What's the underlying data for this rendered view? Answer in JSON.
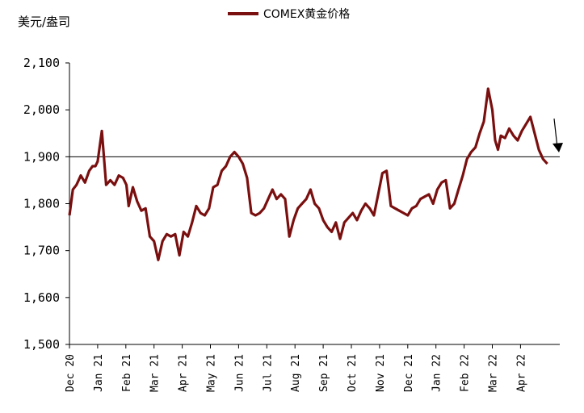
{
  "chart_data": {
    "type": "line",
    "ylabel": "美元/盎司",
    "ylim": [
      1500,
      2100
    ],
    "yticks": [
      1500,
      1600,
      1700,
      1800,
      1900,
      2000,
      2100
    ],
    "ytick_labels": [
      "1,500",
      "1,600",
      "1,700",
      "1,800",
      "1,900",
      "2,000",
      "2,100"
    ],
    "x_ticks": [
      "Dec 20",
      "Jan 21",
      "Feb 21",
      "Mar 21",
      "Apr 21",
      "May 21",
      "Jun 21",
      "Jul 21",
      "Aug 21",
      "Sep 21",
      "Oct 21",
      "Nov 21",
      "Dec 21",
      "Jan 22",
      "Feb 22",
      "Mar 22",
      "Apr 22"
    ],
    "reference_line": 1900,
    "series": [
      {
        "name": "COMEX黄金价格",
        "color": "#7a0f0f",
        "x": [
          0,
          0.12,
          0.25,
          0.4,
          0.55,
          0.7,
          0.82,
          0.92,
          1.0,
          1.15,
          1.3,
          1.45,
          1.6,
          1.75,
          1.9,
          2.02,
          2.1,
          2.25,
          2.4,
          2.55,
          2.7,
          2.85,
          3.0,
          3.15,
          3.3,
          3.45,
          3.6,
          3.75,
          3.9,
          4.05,
          4.2,
          4.35,
          4.5,
          4.65,
          4.8,
          4.95,
          5.1,
          5.25,
          5.4,
          5.55,
          5.7,
          5.85,
          6.0,
          6.15,
          6.3,
          6.45,
          6.6,
          6.75,
          6.9,
          7.05,
          7.2,
          7.35,
          7.5,
          7.65,
          7.8,
          7.95,
          8.1,
          8.25,
          8.4,
          8.55,
          8.7,
          8.85,
          9.0,
          9.15,
          9.3,
          9.45,
          9.6,
          9.75,
          9.9,
          10.05,
          10.2,
          10.35,
          10.5,
          10.65,
          10.8,
          10.95,
          11.1,
          11.25,
          11.4,
          11.55,
          11.7,
          11.85,
          12.0,
          12.15,
          12.3,
          12.45,
          12.6,
          12.75,
          12.9,
          13.05,
          13.2,
          13.35,
          13.5,
          13.65,
          13.8,
          13.95,
          14.1,
          14.25,
          14.4,
          14.55,
          14.7,
          14.85,
          15.0,
          15.1,
          15.2,
          15.3,
          15.45,
          15.6,
          15.75,
          15.9,
          16.05,
          16.2,
          16.35,
          16.5,
          16.65,
          16.8,
          16.95
        ],
        "values": [
          1775,
          1830,
          1840,
          1860,
          1845,
          1870,
          1880,
          1880,
          1890,
          1955,
          1840,
          1850,
          1840,
          1860,
          1855,
          1840,
          1795,
          1835,
          1805,
          1785,
          1790,
          1730,
          1720,
          1680,
          1720,
          1735,
          1730,
          1735,
          1690,
          1740,
          1730,
          1760,
          1795,
          1780,
          1775,
          1790,
          1835,
          1840,
          1870,
          1880,
          1900,
          1910,
          1900,
          1885,
          1855,
          1780,
          1775,
          1780,
          1790,
          1810,
          1830,
          1810,
          1820,
          1810,
          1730,
          1765,
          1790,
          1800,
          1810,
          1830,
          1800,
          1790,
          1765,
          1750,
          1740,
          1760,
          1725,
          1760,
          1770,
          1780,
          1765,
          1785,
          1800,
          1790,
          1775,
          1820,
          1865,
          1870,
          1795,
          1790,
          1785,
          1780,
          1775,
          1790,
          1795,
          1810,
          1815,
          1820,
          1800,
          1830,
          1845,
          1850,
          1790,
          1800,
          1830,
          1860,
          1895,
          1910,
          1920,
          1950,
          1975,
          2045,
          2000,
          1935,
          1915,
          1945,
          1940,
          1960,
          1945,
          1935,
          1955,
          1970,
          1985,
          1950,
          1915,
          1895,
          1885
        ]
      }
    ],
    "annotation": "downward-arrow"
  }
}
